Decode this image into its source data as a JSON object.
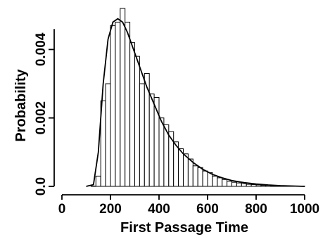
{
  "chart_data": {
    "type": "bar",
    "title": "",
    "xlabel": "First Passage Time",
    "ylabel": "Probability",
    "xlim": [
      0,
      1000
    ],
    "ylim": [
      0,
      0.0052
    ],
    "x_ticks": [
      0,
      200,
      400,
      600,
      800,
      1000
    ],
    "x_tick_labels": [
      "0",
      "200",
      "400",
      "600",
      "800",
      "1000"
    ],
    "y_ticks": [
      0,
      0.002,
      0.004
    ],
    "y_tick_labels": [
      "0.0",
      "0.002",
      "0.004"
    ],
    "bin_width": 20,
    "bin_starts": [
      120,
      140,
      160,
      180,
      200,
      220,
      240,
      260,
      280,
      300,
      320,
      340,
      360,
      380,
      400,
      420,
      440,
      460,
      480,
      500,
      520,
      540,
      560,
      580,
      600,
      620,
      640,
      660,
      680,
      700,
      720,
      740,
      760,
      780,
      800,
      820,
      840,
      860,
      880,
      900,
      920,
      940,
      960,
      980
    ],
    "values": [
      1e-05,
      0.0003,
      0.0025,
      0.003,
      0.0047,
      0.0048,
      0.0052,
      0.0048,
      0.0042,
      0.0038,
      0.003,
      0.0033,
      0.0027,
      0.0026,
      0.002,
      0.0018,
      0.0016,
      0.0013,
      0.0011,
      0.00095,
      0.0008,
      0.0006,
      0.00055,
      0.00045,
      0.0004,
      0.0003,
      0.00025,
      0.0002,
      0.00015,
      0.00012,
      0.0001,
      8e-05,
      6e-05,
      5e-05,
      4e-05,
      3e-05,
      3e-05,
      2e-05,
      2e-05,
      2e-05,
      1e-05,
      1e-05,
      1e-05,
      1e-05
    ],
    "density_curve": {
      "x": [
        100,
        130,
        150,
        170,
        190,
        210,
        230,
        250,
        270,
        290,
        310,
        330,
        350,
        380,
        410,
        440,
        470,
        500,
        540,
        580,
        620,
        660,
        700,
        750,
        800,
        850,
        900,
        950,
        1000
      ],
      "y": [
        0,
        5e-05,
        0.001,
        0.003,
        0.0043,
        0.0048,
        0.0049,
        0.0048,
        0.0045,
        0.0041,
        0.0037,
        0.0033,
        0.0029,
        0.0024,
        0.0019,
        0.0015,
        0.0012,
        0.00095,
        0.0007,
        0.0005,
        0.00035,
        0.00025,
        0.00017,
        0.00011,
        7e-05,
        4e-05,
        2e-05,
        1e-05,
        0
      ]
    }
  }
}
